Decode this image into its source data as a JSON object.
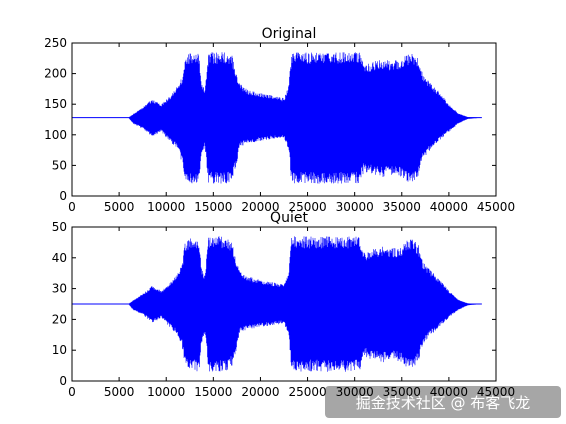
{
  "chart_data": [
    {
      "type": "line",
      "title": "Original",
      "xlabel": "",
      "ylabel": "",
      "xlim": [
        0,
        45000
      ],
      "ylim": [
        0,
        250
      ],
      "x_ticks": [
        0,
        5000,
        10000,
        15000,
        20000,
        25000,
        30000,
        35000,
        40000,
        45000
      ],
      "y_ticks": [
        0,
        50,
        100,
        150,
        200,
        250
      ],
      "grid": false,
      "color": "#0000ff",
      "baseline": 128,
      "data_extent": [
        0,
        43500
      ],
      "envelope": {
        "x": [
          0,
          6000,
          6500,
          7500,
          8500,
          9500,
          10300,
          11000,
          11700,
          12000,
          12500,
          13500,
          13700,
          14100,
          14500,
          16500,
          17000,
          17500,
          17800,
          18500,
          19500,
          21000,
          22500,
          23000,
          23300,
          23800,
          25000,
          27000,
          29000,
          30500,
          31000,
          33000,
          34000,
          35000,
          36000,
          36800,
          37200,
          38000,
          39000,
          40000,
          41000,
          42000,
          43500
        ],
        "max": [
          128,
          128,
          134,
          145,
          158,
          150,
          162,
          175,
          195,
          230,
          235,
          235,
          190,
          175,
          235,
          235,
          230,
          200,
          185,
          175,
          170,
          165,
          160,
          180,
          235,
          235,
          235,
          235,
          235,
          235,
          215,
          225,
          220,
          225,
          235,
          225,
          200,
          185,
          170,
          150,
          135,
          129,
          128
        ],
        "min": [
          128,
          128,
          118,
          110,
          97,
          105,
          90,
          80,
          55,
          25,
          20,
          20,
          60,
          80,
          20,
          20,
          25,
          55,
          80,
          85,
          88,
          92,
          95,
          75,
          20,
          20,
          20,
          20,
          20,
          20,
          40,
          30,
          35,
          30,
          20,
          32,
          60,
          75,
          90,
          105,
          118,
          126,
          128
        ]
      }
    },
    {
      "type": "line",
      "title": "Quiet",
      "xlabel": "",
      "ylabel": "",
      "xlim": [
        0,
        45000
      ],
      "ylim": [
        0,
        50
      ],
      "x_ticks": [
        0,
        5000,
        10000,
        15000,
        20000,
        25000,
        30000,
        35000,
        40000,
        45000
      ],
      "y_ticks": [
        0,
        10,
        20,
        30,
        40,
        50
      ],
      "grid": false,
      "color": "#0000ff",
      "baseline": 25,
      "data_extent": [
        0,
        43500
      ],
      "envelope": {
        "x": [
          0,
          6000,
          6500,
          7500,
          8500,
          9500,
          10300,
          11000,
          11700,
          12000,
          12500,
          13500,
          13700,
          14100,
          14500,
          16500,
          17000,
          17500,
          17800,
          18500,
          19500,
          21000,
          22500,
          23000,
          23300,
          23800,
          25000,
          27000,
          29000,
          30500,
          31000,
          33000,
          34000,
          35000,
          36000,
          36800,
          37200,
          38000,
          39000,
          40000,
          41000,
          42000,
          43500
        ],
        "max": [
          25,
          25,
          26.2,
          28.3,
          30.9,
          29.3,
          31.7,
          34.2,
          38.1,
          45,
          47,
          47,
          37.1,
          34.2,
          47,
          47,
          45,
          39.1,
          36.1,
          34.2,
          33.2,
          32.2,
          31.3,
          35.2,
          47,
          47,
          47,
          47,
          47,
          47,
          42,
          44,
          43,
          44,
          47,
          44,
          39.1,
          36.1,
          33.2,
          29.3,
          26.4,
          25.2,
          25
        ],
        "min": [
          25,
          25,
          23,
          21.5,
          18.9,
          20.5,
          17.6,
          15.6,
          10.7,
          4.9,
          3,
          3,
          11.7,
          15.6,
          3,
          3,
          4.9,
          10.7,
          15.6,
          16.6,
          17.2,
          18,
          18.6,
          14.6,
          3,
          3,
          3,
          3,
          3,
          3,
          7.8,
          5.9,
          6.8,
          5.9,
          3,
          6.3,
          11.7,
          14.6,
          17.6,
          20.5,
          23,
          24.6,
          25
        ]
      }
    }
  ],
  "watermark": "掘金技术社区 @ 布客飞龙"
}
